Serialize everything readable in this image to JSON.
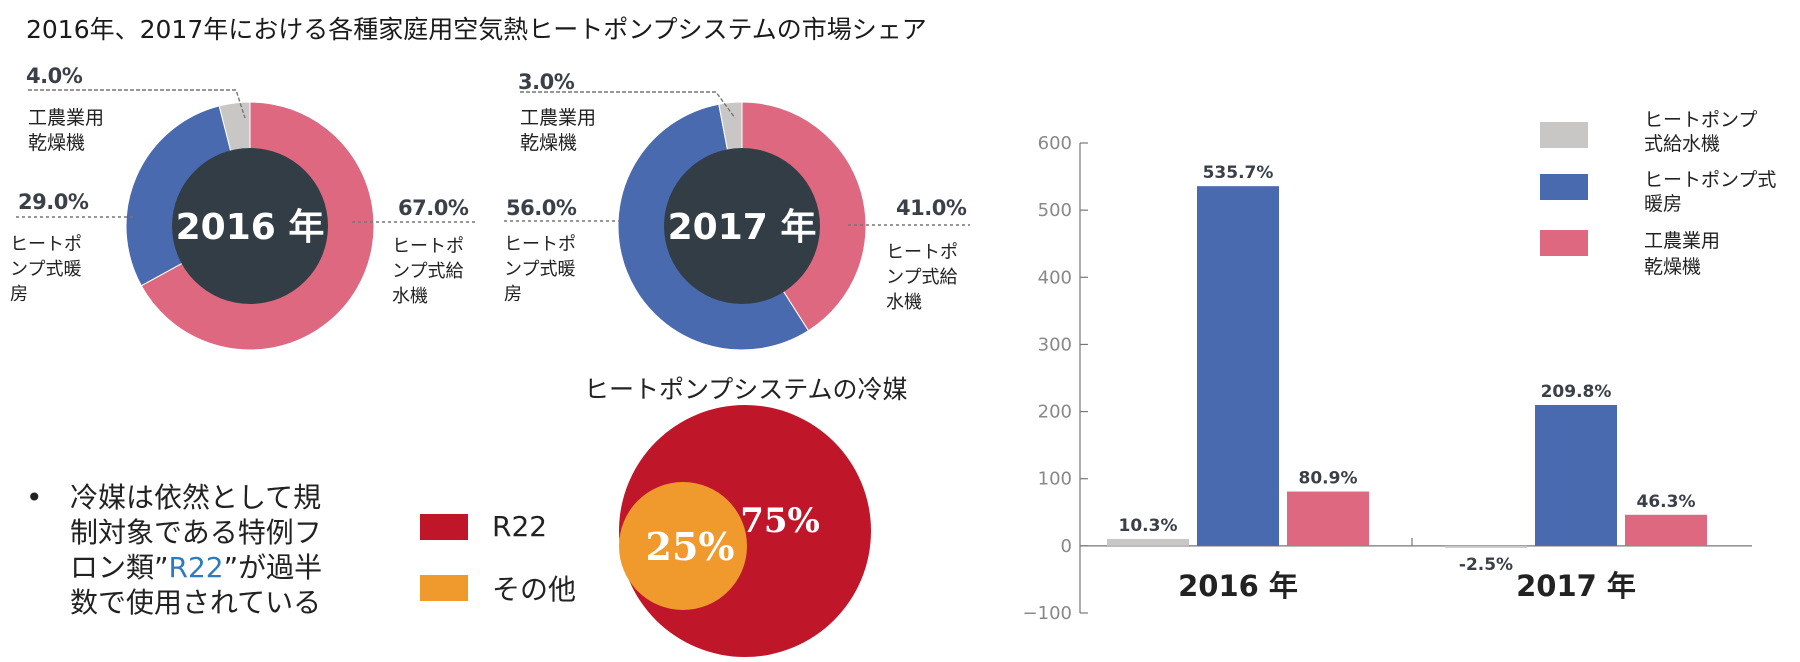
{
  "title": "2016年、2017年における各種家庭用空気熱ヒートポンプシステムの市場シェア",
  "colors": {
    "gray": "#c9c7c6",
    "blue": "#4a6aaf",
    "pink": "#dd6880",
    "center": "#333d46",
    "red": "#c0162a",
    "orange": "#f0992d"
  },
  "donuts": [
    {
      "center_label": "2016 年",
      "slices": [
        {
          "name": "ヒートポンプ式給水機",
          "value": 67.0,
          "pct_label": "67.0%",
          "label_lines": [
            "ヒートポ",
            "ンプ式給",
            "水機"
          ]
        },
        {
          "name": "ヒートポンプ式暖房",
          "value": 29.0,
          "pct_label": "29.0%",
          "label_lines": [
            "ヒートポ",
            "ンプ式暖",
            "房"
          ]
        },
        {
          "name": "工農業用乾燥機",
          "value": 4.0,
          "pct_label": "4.0%",
          "label_lines": [
            "工農業用",
            "乾燥機"
          ]
        }
      ]
    },
    {
      "center_label": "2017 年",
      "slices": [
        {
          "name": "ヒートポンプ式給水機",
          "value": 41.0,
          "pct_label": "41.0%",
          "label_lines": [
            "ヒートポ",
            "ンプ式給",
            "水機"
          ]
        },
        {
          "name": "ヒートポンプ式暖房",
          "value": 56.0,
          "pct_label": "56.0%",
          "label_lines": [
            "ヒートポ",
            "ンプ式暖",
            "房"
          ]
        },
        {
          "name": "工農業用乾燥機",
          "value": 3.0,
          "pct_label": "3.0%",
          "label_lines": [
            "工農業用",
            "乾燥機"
          ]
        }
      ]
    }
  ],
  "refrigerant": {
    "title": "ヒートポンプシステムの冷媒",
    "slices": [
      {
        "name": "R22",
        "value": 75,
        "pct_label": "75%"
      },
      {
        "name": "その他",
        "value": 25,
        "pct_label": "25%"
      }
    ]
  },
  "bullet": {
    "dot": "•",
    "line1": "冷媒は依然として規",
    "line2": "制対象である特例フ",
    "line3_pre": "ロン類”",
    "line3_hl": "R22",
    "line3_post": "”が過半",
    "line4": "数で使用されている"
  },
  "chart_data": [
    {
      "type": "pie",
      "subtype": "donut",
      "center_label": "2016 年",
      "categories": [
        "ヒートポンプ式給水機",
        "ヒートポンプ式暖房",
        "工農業用乾燥機"
      ],
      "values": [
        67.0,
        29.0,
        4.0
      ]
    },
    {
      "type": "pie",
      "subtype": "donut",
      "center_label": "2017 年",
      "categories": [
        "ヒートポンプ式給水機",
        "ヒートポンプ式暖房",
        "工農業用乾燥機"
      ],
      "values": [
        41.0,
        56.0,
        3.0
      ]
    },
    {
      "type": "pie",
      "title": "ヒートポンプシステムの冷媒",
      "categories": [
        "R22",
        "その他"
      ],
      "values": [
        75,
        25
      ]
    },
    {
      "type": "bar",
      "categories": [
        "2016 年",
        "2017 年"
      ],
      "series": [
        {
          "name": "ヒートポンプ式給水機",
          "values": [
            10.3,
            -2.5
          ],
          "labels": [
            "10.3%",
            "-2.5%"
          ]
        },
        {
          "name": "ヒートポンプ式暖房",
          "values": [
            535.7,
            209.8
          ],
          "labels": [
            "535.7%",
            "209.8%"
          ]
        },
        {
          "name": "工農業用乾燥機",
          "values": [
            80.9,
            46.3
          ],
          "labels": [
            "80.9%",
            "46.3%"
          ]
        }
      ],
      "legend": [
        {
          "lines": [
            "ヒートポンプ",
            "式給水機"
          ]
        },
        {
          "lines": [
            "ヒートポンプ式",
            "暖房"
          ]
        },
        {
          "lines": [
            "工農業用",
            "乾燥機"
          ]
        }
      ],
      "legend_position": "top-right",
      "ylim": [
        -100,
        600
      ],
      "yticks": [
        600,
        500,
        400,
        300,
        200,
        100,
        0,
        -100
      ],
      "ytick_labels": [
        "600",
        "500",
        "400",
        "300",
        "200",
        "100",
        "0",
        "−100"
      ],
      "grid": false
    }
  ]
}
